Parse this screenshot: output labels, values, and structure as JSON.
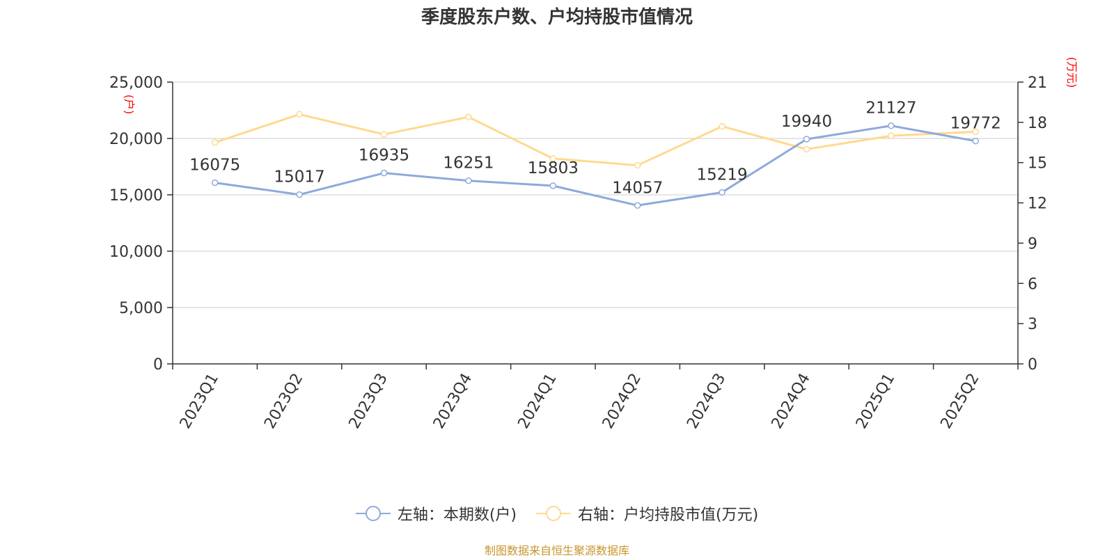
{
  "title": "季度股东户数、户均持股市值情况",
  "source": "制图数据来自恒生聚源数据库",
  "colors": {
    "left_series": "#8eaadb",
    "right_series": "#ffd98f",
    "axis_unit": "#ff0000",
    "grid": "#cccccc",
    "source": "#c8962e"
  },
  "chart_data": {
    "type": "line",
    "categories": [
      "2023Q1",
      "2023Q2",
      "2023Q3",
      "2023Q4",
      "2024Q1",
      "2024Q2",
      "2024Q3",
      "2024Q4",
      "2025Q1",
      "2025Q2"
    ],
    "y_left": {
      "unit": "(户)",
      "min": 0,
      "max": 25000,
      "ticks": [
        0,
        5000,
        10000,
        15000,
        20000,
        25000
      ],
      "tick_labels": [
        "0",
        "5,000",
        "10,000",
        "15,000",
        "20,000",
        "25,000"
      ]
    },
    "y_right": {
      "unit": "(万元)",
      "min": 0,
      "max": 21,
      "ticks": [
        0,
        3,
        6,
        9,
        12,
        15,
        18,
        21
      ],
      "tick_labels": [
        "0",
        "3",
        "6",
        "9",
        "12",
        "15",
        "18",
        "21"
      ]
    },
    "grid": true,
    "legend_position": "bottom",
    "series": [
      {
        "name": "左轴：本期数(户)",
        "axis": "left",
        "color": "#8eaadb",
        "values": [
          16075,
          15017,
          16935,
          16251,
          15803,
          14057,
          15219,
          19940,
          21127,
          19772
        ],
        "data_labels": [
          "16075",
          "15017",
          "16935",
          "16251",
          "15803",
          "14057",
          "15219",
          "19940",
          "21127",
          "19772"
        ]
      },
      {
        "name": "右轴：户均持股市值(万元)",
        "axis": "right",
        "color": "#ffd98f",
        "values": [
          16.5,
          18.6,
          17.1,
          18.4,
          15.3,
          14.8,
          17.7,
          16.0,
          17.0,
          17.3
        ]
      }
    ]
  }
}
